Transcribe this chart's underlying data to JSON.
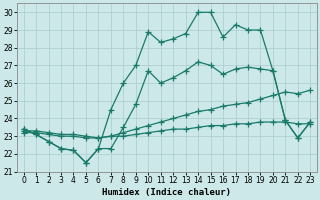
{
  "xlabel": "Humidex (Indice chaleur)",
  "xlim": [
    -0.5,
    23.5
  ],
  "ylim": [
    21,
    30.5
  ],
  "yticks": [
    21,
    22,
    23,
    24,
    25,
    26,
    27,
    28,
    29,
    30
  ],
  "xticks": [
    0,
    1,
    2,
    3,
    4,
    5,
    6,
    7,
    8,
    9,
    10,
    11,
    12,
    13,
    14,
    15,
    16,
    17,
    18,
    19,
    20,
    21,
    22,
    23
  ],
  "bg_color": "#cce8e8",
  "grid_color": "#aacccc",
  "line_color": "#1a7a6a",
  "line_width": 0.9,
  "marker": "+",
  "marker_size": 4,
  "marker_ew": 0.9,
  "line1": [
    23.4,
    23.1,
    22.7,
    22.3,
    22.2,
    21.5,
    22.3,
    24.5,
    26.0,
    27.0,
    28.9,
    28.3,
    28.5,
    28.8,
    30.0,
    30.0,
    28.6,
    29.3,
    29.0,
    29.0,
    26.7,
    23.9,
    22.9,
    23.8
  ],
  "line2": [
    23.4,
    23.1,
    22.7,
    22.3,
    22.2,
    21.5,
    22.3,
    22.3,
    23.5,
    24.8,
    26.7,
    26.0,
    26.3,
    26.7,
    27.2,
    27.0,
    26.5,
    26.8,
    26.9,
    26.8,
    26.7,
    23.9,
    22.9,
    23.8
  ],
  "line3": [
    23.3,
    23.3,
    23.2,
    23.1,
    23.1,
    23.0,
    22.9,
    23.0,
    23.2,
    23.4,
    23.6,
    23.8,
    24.0,
    24.2,
    24.4,
    24.5,
    24.7,
    24.8,
    24.9,
    25.1,
    25.3,
    25.5,
    25.4,
    25.6
  ],
  "line4": [
    23.2,
    23.2,
    23.1,
    23.0,
    23.0,
    22.9,
    22.9,
    23.0,
    23.0,
    23.1,
    23.2,
    23.3,
    23.4,
    23.4,
    23.5,
    23.6,
    23.6,
    23.7,
    23.7,
    23.8,
    23.8,
    23.8,
    23.7,
    23.7
  ]
}
